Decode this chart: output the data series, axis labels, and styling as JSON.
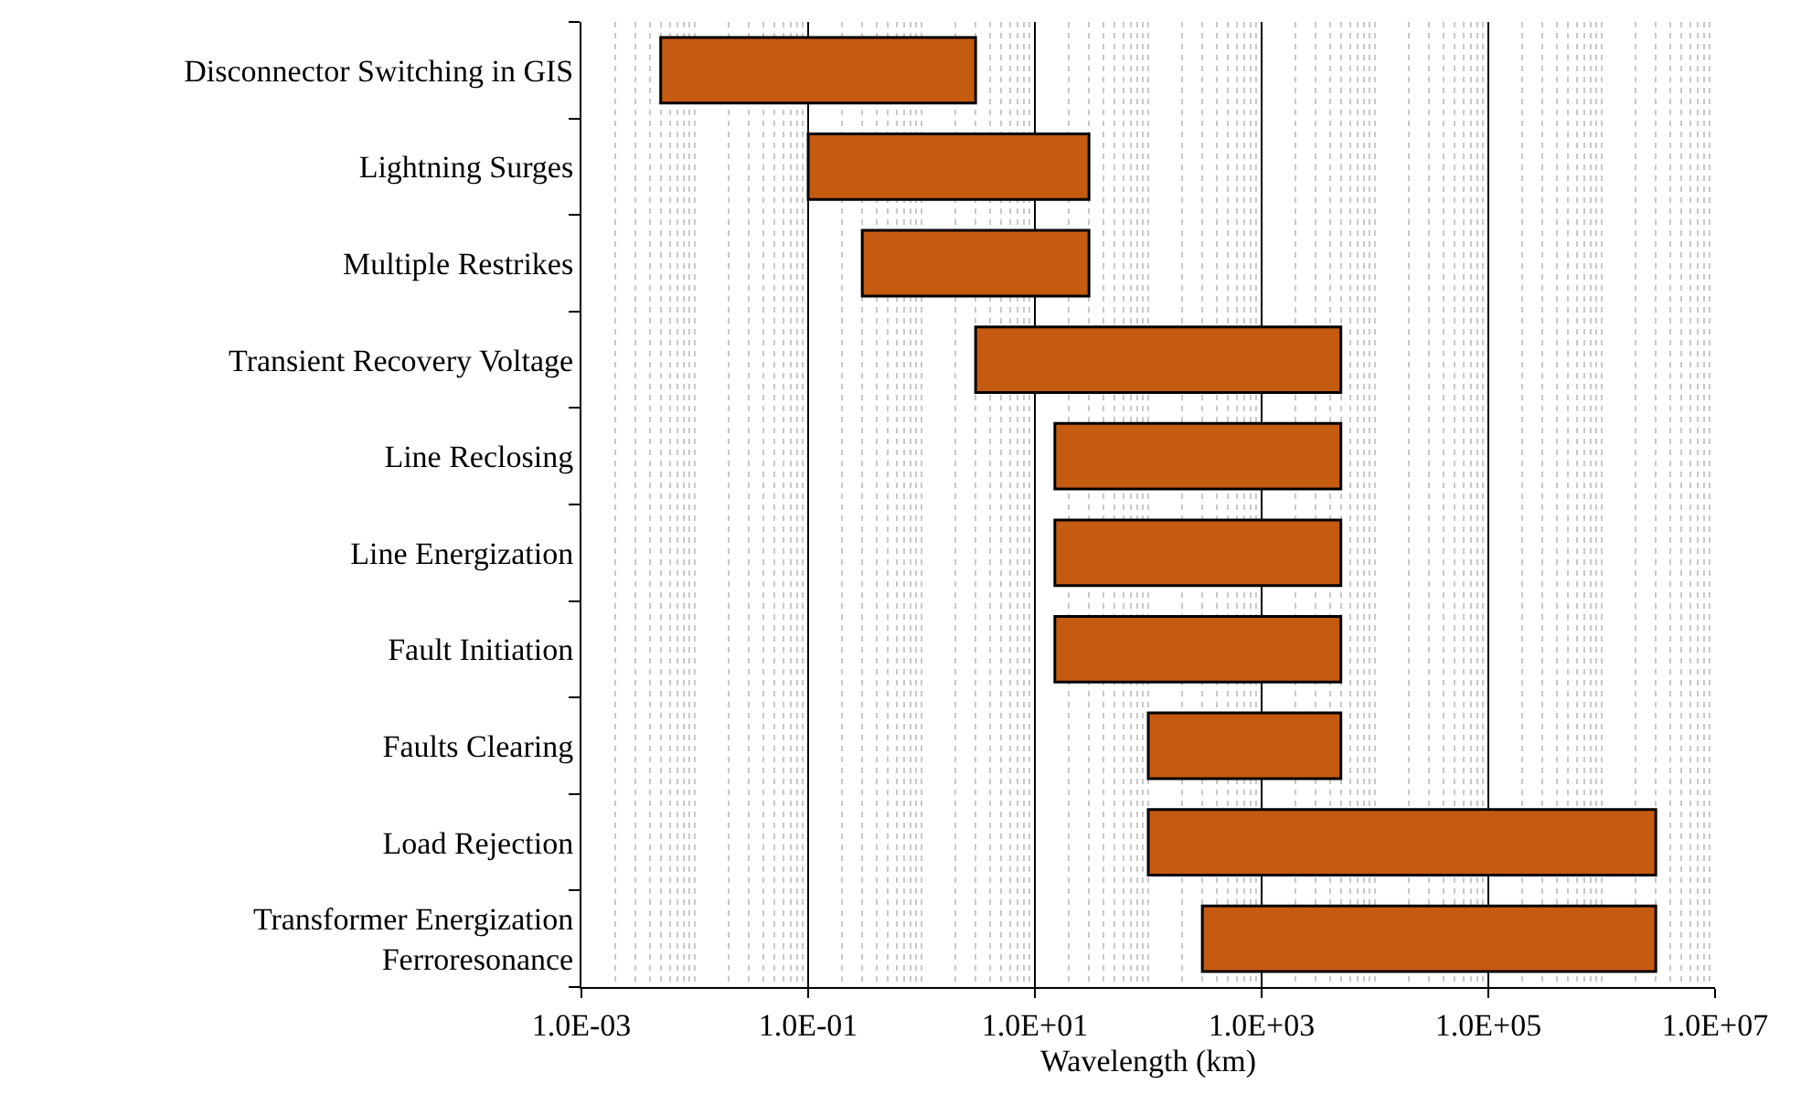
{
  "chart_data": {
    "type": "bar",
    "orientation": "horizontal",
    "xlabel": "Wavelength (km)",
    "categories": [
      "Disconnector Switching in GIS",
      "Lightning Surges",
      "Multiple Restrikes",
      "Transient Recovery Voltage",
      "Line Reclosing",
      "Line Energization",
      "Fault Initiation",
      "Faults Clearing",
      "Load Rejection",
      "Transformer Energization\nFerroresonance"
    ],
    "base": [
      0.005,
      0.1,
      0.3,
      3,
      15,
      15,
      15,
      100,
      100,
      300
    ],
    "values": [
      2.995,
      29.9,
      29.7,
      4997,
      4985,
      4985,
      4985,
      4900,
      2999900,
      2999700
    ],
    "color": "#c55a11",
    "log": "x",
    "grid": "x",
    "xlim": [
      0.001,
      10000000
    ],
    "xticks": [
      {
        "value": 0.001,
        "label": "1.0E-03"
      },
      {
        "value": 0.1,
        "label": "1.0E-01"
      },
      {
        "value": 10,
        "label": "1.0E+01"
      },
      {
        "value": 1000,
        "label": "1.0E+03"
      },
      {
        "value": 100000,
        "label": "1.0E+05"
      },
      {
        "value": 10000000,
        "label": "1.0E+07"
      }
    ]
  }
}
